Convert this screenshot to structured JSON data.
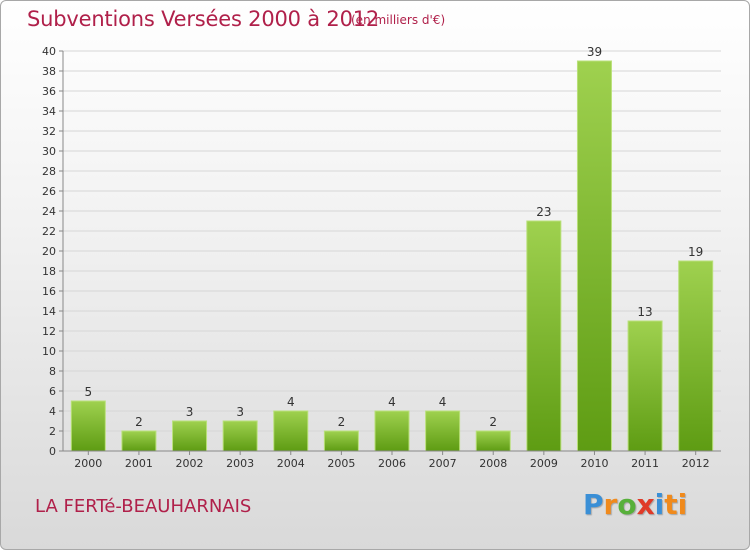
{
  "header": {
    "title": "Subventions Versées 2000 à 2012",
    "unit": "(en milliers d'€)"
  },
  "footer": {
    "commune": "LA FERTé-BEAUHARNAIS",
    "logo_letters": [
      "P",
      "r",
      "o",
      "x",
      "i",
      "ti"
    ]
  },
  "colors": {
    "title": "#b0204a",
    "bar_top": "#9fd14f",
    "bar_bottom": "#5e9c13",
    "grid": "#d6d6d6"
  },
  "chart_data": {
    "type": "bar",
    "categories": [
      "2000",
      "2001",
      "2002",
      "2003",
      "2004",
      "2005",
      "2006",
      "2007",
      "2008",
      "2009",
      "2010",
      "2011",
      "2012"
    ],
    "values": [
      5,
      2,
      3,
      3,
      4,
      2,
      4,
      4,
      2,
      23,
      39,
      13,
      19
    ],
    "data_labels": [
      "5",
      "2",
      "3",
      "3",
      "4",
      "2",
      "4",
      "4",
      "2",
      "23",
      "39",
      "13",
      "19"
    ],
    "title": "Subventions Versées 2000 à 2012",
    "ylim": [
      0,
      40
    ],
    "yticks": [
      0,
      2,
      4,
      6,
      8,
      10,
      12,
      14,
      16,
      18,
      20,
      22,
      24,
      26,
      28,
      30,
      32,
      34,
      36,
      38,
      40
    ],
    "grid": true
  }
}
